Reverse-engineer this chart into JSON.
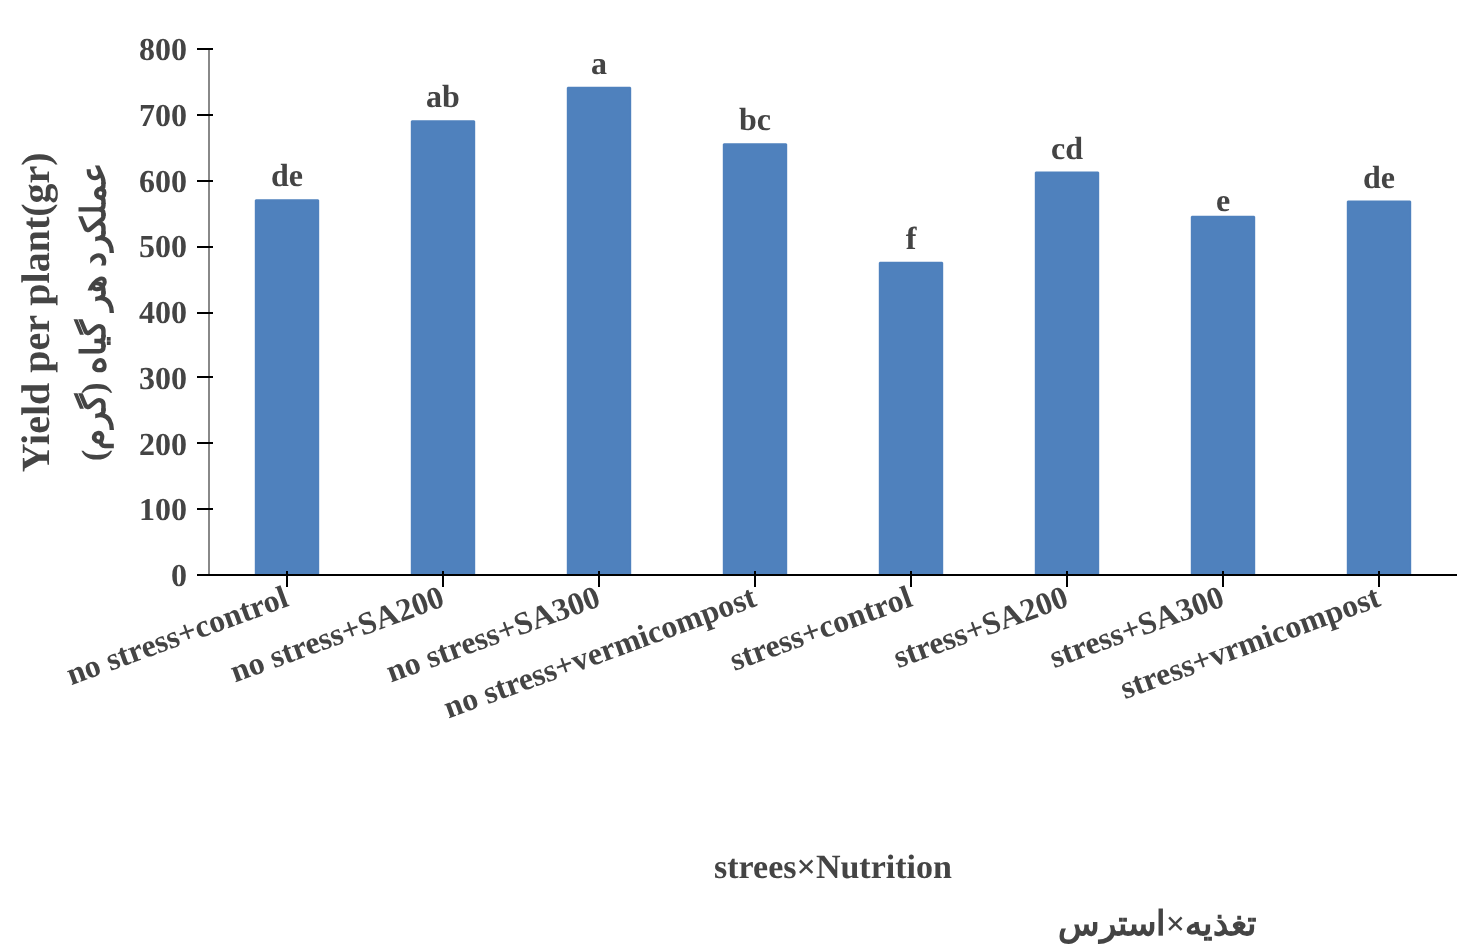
{
  "chart_data": {
    "type": "bar",
    "categories": [
      "no stress+control",
      "no stress+SA200",
      "no stress+SA300",
      "no stress+vermicompost",
      "stress+control",
      "stress+SA200",
      "stress+SA300",
      "stress+vrmicompost"
    ],
    "values": [
      570,
      690,
      741,
      655,
      475,
      612,
      545,
      568
    ],
    "value_labels": [
      "de",
      "ab",
      "a",
      "bc",
      "f",
      "cd",
      "e",
      "de"
    ],
    "color": "#4f81bd",
    "ylabel": "Yield per plant(gr)",
    "xlabel": "strees×Nutrition",
    "annotations": [
      "عملکرد هر گیاه (گرم)",
      "تغذیه×استرس"
    ],
    "ylim": [
      0,
      800
    ],
    "yticks": [
      0,
      100,
      200,
      300,
      400,
      500,
      600,
      700,
      800
    ],
    "grid": false
  }
}
